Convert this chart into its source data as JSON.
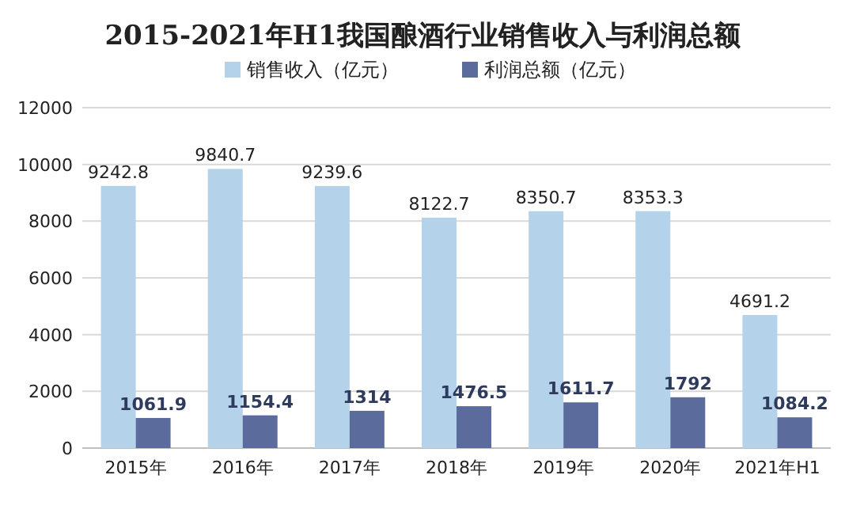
{
  "chart_data": {
    "type": "bar",
    "title": "2015-2021年H1我国酿酒行业销售收入与利润总额",
    "categories": [
      "2015年",
      "2016年",
      "2017年",
      "2018年",
      "2019年",
      "2020年",
      "2021年H1"
    ],
    "series": [
      {
        "name": "销售收入（亿元）",
        "color": "#b4d3ea",
        "values": [
          9242.8,
          9840.7,
          9239.6,
          8122.7,
          8350.7,
          8353.3,
          4691.2
        ]
      },
      {
        "name": "利润总额（亿元）",
        "color": "#5b6c9c",
        "values": [
          1061.9,
          1154.4,
          1314,
          1476.5,
          1611.7,
          1792,
          1084.2
        ]
      }
    ],
    "ylim": [
      0,
      12000
    ],
    "yticks": [
      0,
      2000,
      4000,
      6000,
      8000,
      10000,
      12000
    ],
    "grid": "y",
    "legend": "top",
    "data_labels": true
  }
}
